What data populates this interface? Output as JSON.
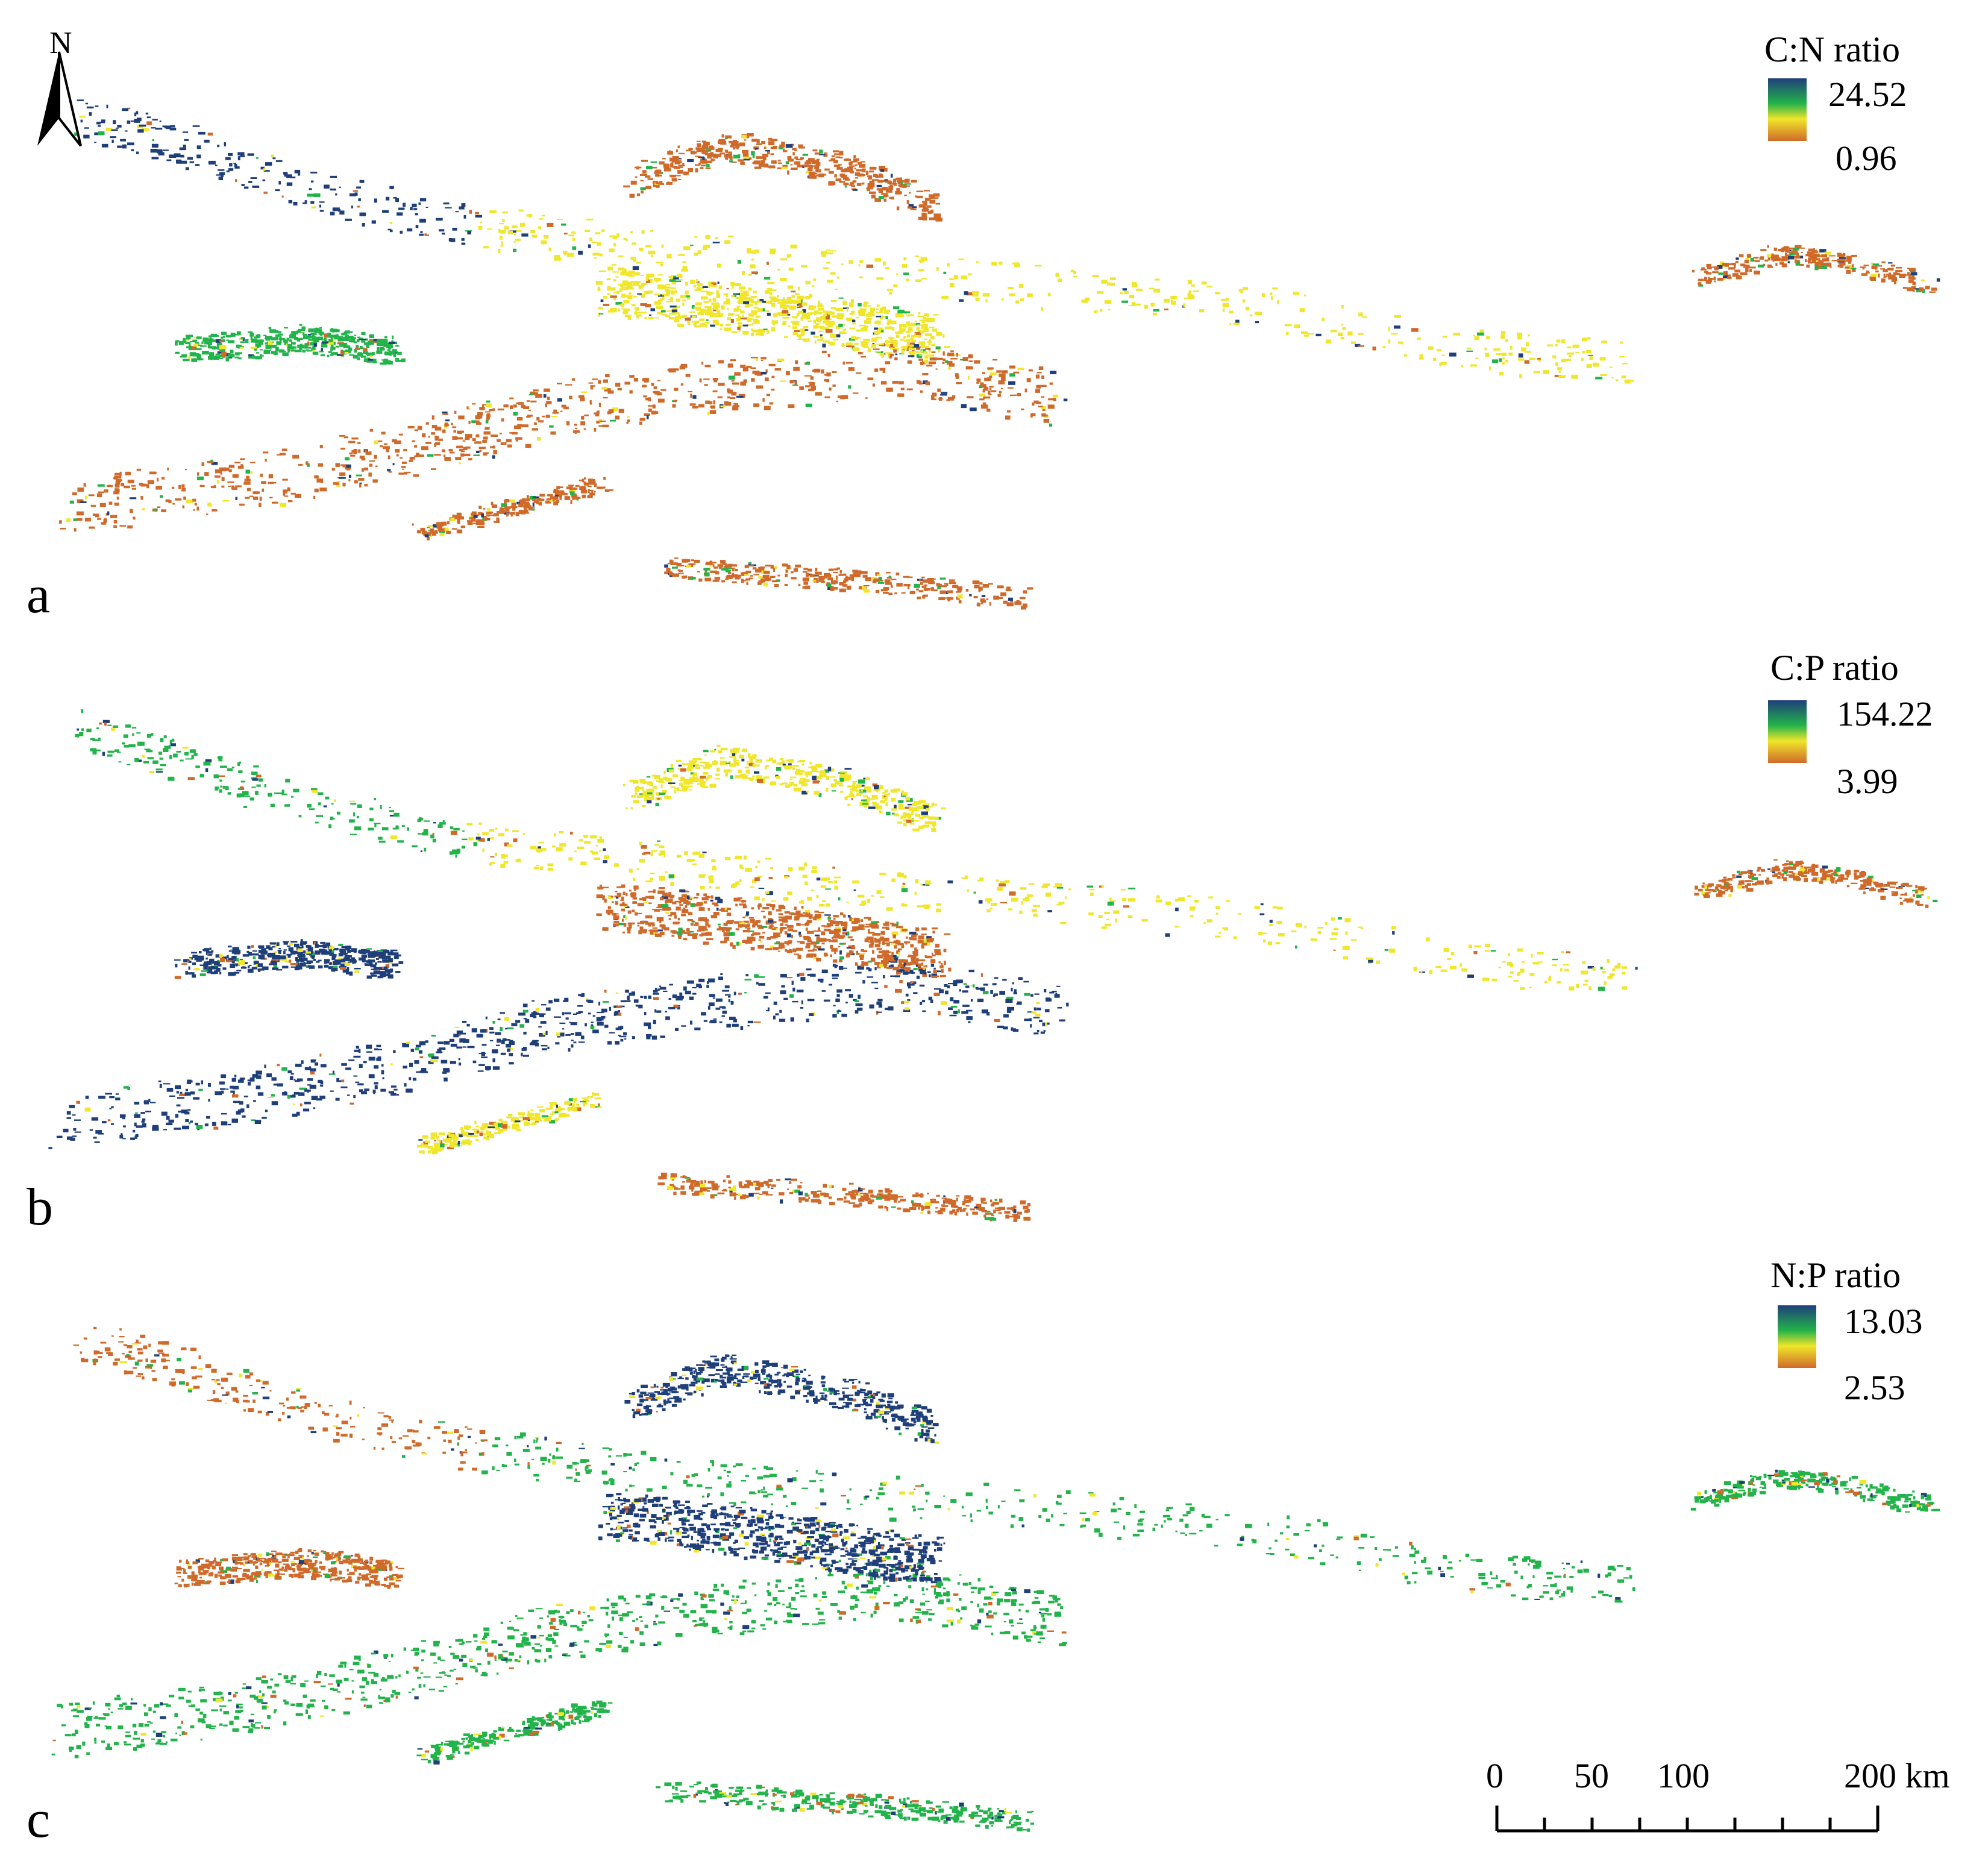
{
  "north_arrow": {
    "letter": "N"
  },
  "panels": [
    {
      "label": "a",
      "legend": {
        "title": "C:N ratio",
        "max": "24.52",
        "min": "0.96"
      },
      "colors": {
        "high": "#1f3f7a",
        "midhigh": "#22b34a",
        "mid": "#f0e62a",
        "low": "#d06a2a"
      }
    },
    {
      "label": "b",
      "legend": {
        "title": "C:P ratio",
        "max": "154.22",
        "min": "3.99"
      },
      "colors": {
        "high": "#1f3f7a",
        "midhigh": "#22b34a",
        "mid": "#f0e62a",
        "low": "#d06a2a"
      }
    },
    {
      "label": "c",
      "legend": {
        "title": "N:P ratio",
        "max": "13.03",
        "min": "2.53"
      },
      "colors": {
        "high": "#1f3f7a",
        "midhigh": "#22b34a",
        "mid": "#f0e62a",
        "low": "#d06a2a"
      }
    }
  ],
  "scale_bar": {
    "labels": [
      "0",
      "50",
      "100",
      "200 km"
    ]
  }
}
